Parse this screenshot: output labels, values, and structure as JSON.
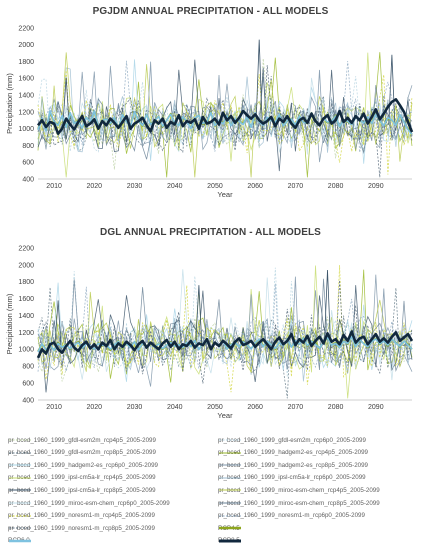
{
  "chart_data": [
    {
      "type": "line",
      "title": "PGJDM ANNUAL PRECIPITATION - ALL MODELS",
      "xlabel": "Year",
      "ylabel": "Precipitation (mm)",
      "xlim": [
        2006,
        2099
      ],
      "ylim": [
        400,
        2200
      ],
      "yticks": [
        400,
        600,
        800,
        1000,
        1200,
        1400,
        1600,
        1800,
        2000,
        2200
      ],
      "xticks": [
        2010,
        2020,
        2030,
        2040,
        2050,
        2060,
        2070,
        2080,
        2090
      ],
      "grid": "none",
      "ensemble_mean_approx": {
        "RCP4.5": [
          1090,
          1050,
          1080,
          1100,
          1040,
          1060,
          1020,
          1090,
          1070,
          1050,
          1080,
          1100,
          1070,
          1050,
          1090,
          1060,
          1080,
          1040,
          1070,
          1100
        ],
        "RCP8.5": [
          1060,
          1090,
          1000,
          950,
          1080,
          1120,
          1050,
          1030,
          1080,
          1150,
          1020,
          1050,
          1100,
          1140,
          1050,
          1080,
          1000,
          1090,
          1120,
          1060
        ]
      },
      "series_notable": {
        "rcp4.5_approx": [
          1000,
          1120,
          980,
          1200,
          1080,
          1050,
          1150,
          1020,
          1180,
          1060,
          1100,
          1000,
          1140,
          1070,
          1210,
          1030,
          1090,
          1120,
          1050,
          1130,
          1010,
          1160,
          1080,
          1040,
          1200,
          1100,
          1030,
          1170,
          1060,
          1090,
          1150,
          1020,
          1100,
          1180,
          1070,
          1040,
          1130,
          1090,
          1010,
          1120,
          1160,
          1050,
          1080,
          1200,
          1030,
          1100,
          1070,
          1150,
          1040,
          1110,
          1090,
          1060,
          1140,
          1020,
          1180,
          1080,
          1050,
          1130,
          1100,
          1060,
          1170,
          1040,
          1090,
          1120,
          1030,
          1150,
          1080,
          1060,
          1190,
          1100,
          1040,
          1130,
          1070,
          1090,
          1160,
          1020,
          1110,
          1080,
          1050,
          1140,
          1100,
          1070,
          1130,
          1060,
          1180,
          1090,
          1040,
          1120,
          1100,
          1050,
          1160,
          1080,
          1000,
          930
        ],
        "rcp8.5_approx": [
          1040,
          1100,
          1020,
          1080,
          1060,
          940,
          1000,
          1120,
          1050,
          990,
          1080,
          1150,
          1030,
          1060,
          1110,
          1000,
          1090,
          1040,
          1120,
          1070,
          1010,
          1080,
          1150,
          1000,
          1060,
          1090,
          1130,
          1040,
          970,
          1100,
          1060,
          1120,
          1010,
          1080,
          1050,
          1160,
          1030,
          1090,
          1070,
          1110,
          1000,
          1140,
          1060,
          1080,
          1120,
          1050,
          1190,
          1100,
          1150,
          1070,
          1130,
          1210,
          1160,
          1120,
          1170,
          1100,
          1060,
          1090,
          1140,
          1030,
          1120,
          1080,
          1150,
          1060,
          1010,
          1100,
          1130,
          1070,
          1180,
          1090,
          1040,
          1120,
          1160,
          1060,
          1100,
          1210,
          1080,
          1130,
          1070,
          1150,
          1100,
          1180,
          1060,
          1140,
          1230,
          1110,
          1180,
          1260,
          1320,
          1350,
          1280,
          1200,
          1080,
          960
        ]
      }
    },
    {
      "type": "line",
      "title": "DGL ANNUAL PRECIPITATION - ALL MODELS",
      "xlabel": "Year",
      "ylabel": "Precipitation (mm)",
      "xlim": [
        2006,
        2099
      ],
      "ylim": [
        400,
        2200
      ],
      "yticks": [
        400,
        600,
        800,
        1000,
        1200,
        1400,
        1600,
        1800,
        2000,
        2200
      ],
      "xticks": [
        2010,
        2020,
        2030,
        2040,
        2050,
        2060,
        2070,
        2080,
        2090
      ],
      "grid": "none",
      "series_notable": {
        "rcp4.5_approx": [
          980,
          1060,
          1000,
          1040,
          990,
          1080,
          1020,
          1060,
          1000,
          1050,
          1090,
          1010,
          1070,
          1030,
          1000,
          1080,
          1040,
          1060,
          990,
          1050,
          1100,
          1010,
          1070,
          1030,
          1090,
          1000,
          1060,
          1040,
          1080,
          1020,
          1070,
          1000,
          1050,
          1090,
          1030,
          1060,
          1010,
          1080,
          1040,
          1100,
          1000,
          1060,
          1090,
          1020,
          1070,
          1040,
          1110,
          1000,
          1060,
          1080,
          1030,
          1100,
          1050,
          1010,
          1070,
          1120,
          1040,
          1090,
          1060,
          1000,
          1080,
          1050,
          1120,
          1030,
          1090,
          1060,
          1140,
          1040,
          1100,
          1070,
          1010,
          1090,
          1130,
          1050,
          1080,
          1020,
          1100,
          1060,
          1150,
          1040,
          1110,
          1070,
          1020,
          1090,
          1130,
          1060,
          1100,
          1040,
          1120,
          1080,
          1030,
          1100,
          1060,
          1000
        ],
        "rcp8.5_approx": [
          900,
          1000,
          950,
          1060,
          1080,
          1000,
          960,
          1040,
          1100,
          1020,
          980,
          1050,
          1090,
          1010,
          1060,
          1000,
          1080,
          1040,
          1110,
          1000,
          1070,
          1030,
          1090,
          1050,
          990,
          1060,
          1100,
          1020,
          1080,
          1040,
          1000,
          1070,
          1110,
          1030,
          1090,
          1000,
          1060,
          1040,
          1100,
          1020,
          1070,
          1050,
          1120,
          1000,
          1080,
          1040,
          1100,
          1060,
          1010,
          1090,
          1130,
          1050,
          1070,
          1100,
          1030,
          1080,
          1120,
          1060,
          1000,
          1090,
          1140,
          1060,
          1100,
          1180,
          1050,
          1120,
          1080,
          1160,
          1040,
          1100,
          1150,
          1070,
          1190,
          1090,
          1120,
          1060,
          1170,
          1100,
          1210,
          1080,
          1130,
          1150,
          1060,
          1120,
          1180,
          1090,
          1130,
          1080,
          1150,
          1200,
          1100,
          1140,
          1180,
          1100
        ]
      }
    }
  ],
  "legend": [
    {
      "label": "pr_bced_1960_1999_gfdl-esm2m_rcp4p5_2005-2099",
      "color": "#b9cfa0",
      "style": "dashed"
    },
    {
      "label": "pr_bced_1960_1999_gfdl-esm2m_rcp6p0_2005-2099",
      "color": "#b5d3e1",
      "style": "dashed"
    },
    {
      "label": "pr_bced_1960_1999_gfdl-esm2m_rcp8p5_2005-2099",
      "color": "#5e7584",
      "style": "dashed"
    },
    {
      "label": "pr_bced_1960_1999_hadgem2-es_rcp4p5_2005-2099",
      "color": "#9ab829",
      "style": "solid"
    },
    {
      "label": "pr_bced_1960_1999_hadgem2-es_rcp6p0_2005-2099",
      "color": "#a8d4e6",
      "style": "solid"
    },
    {
      "label": "pr_bced_1960_1999_hadgem2-es_rcp8p5_2005-2099",
      "color": "#7d94a8",
      "style": "solid"
    },
    {
      "label": "pr_bced_1960_1999_ipsl-cm5a-lr_rcp4p5_2005-2099",
      "color": "#c6dc6d",
      "style": "solid"
    },
    {
      "label": "pr_bced_1960_1999_ipsl-cm5a-lr_rcp6p0_2005-2099",
      "color": "#9fbdd0",
      "style": "solid"
    },
    {
      "label": "pr_bced_1960_1999_ipsl-cm5a-lr_rcp8p5_2005-2099",
      "color": "#3d566b",
      "style": "solid"
    },
    {
      "label": "pr_bced_1960_1999_miroc-esm-chem_rcp4p5_2005-2099",
      "color": "#b7c94a",
      "style": "solid"
    },
    {
      "label": "pr_bced_1960_1999_miroc-esm-chem_rcp6p0_2005-2099",
      "color": "#c1dde8",
      "style": "solid"
    },
    {
      "label": "pr_bced_1960_1999_miroc-esm-chem_rcp8p5_2005-2099",
      "color": "#6b8397",
      "style": "solid"
    },
    {
      "label": "pr_bced_1960_1999_noresm1-m_rcp4p5_2005-2099",
      "color": "#d1d53a",
      "style": "dashed"
    },
    {
      "label": "pr_bced_1960_1999_noresm1-m_rcp6p0_2005-2099",
      "color": "#8ba7c0",
      "style": "dashed"
    },
    {
      "label": "pr_bced_1960_1999_noresm1-m_rcp8p5_2005-2099",
      "color": "#4e6273",
      "style": "dashed"
    },
    {
      "label": "RCP4.5",
      "color": "#8ea61e",
      "style": "thick"
    },
    {
      "label": "RCP6.0",
      "color": "#7ec2e0",
      "style": "thick"
    },
    {
      "label": "RCP8.5",
      "color": "#11283d",
      "style": "thick"
    }
  ]
}
